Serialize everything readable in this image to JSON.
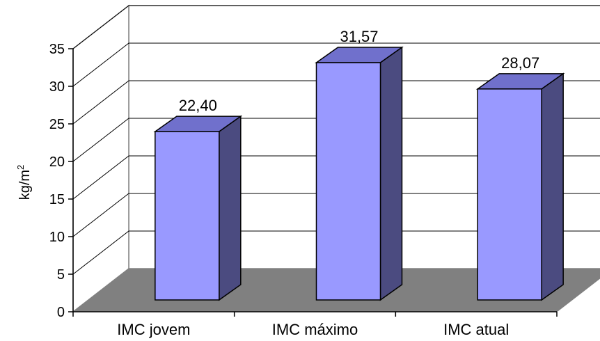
{
  "chart_data": {
    "type": "bar",
    "categories": [
      "IMC jovem",
      "IMC máximo",
      "IMC atual"
    ],
    "values": [
      22.4,
      31.57,
      28.07
    ],
    "data_labels": [
      "22,40",
      "31,57",
      "28,07"
    ],
    "ylabel": "kg/m",
    "ylabel_superscript": "2",
    "ylim": [
      0,
      35
    ],
    "yticks": [
      "0",
      "5",
      "10",
      "15",
      "20",
      "25",
      "30",
      "35"
    ],
    "grid": true,
    "three_d": true,
    "colors": {
      "bar_front": "#9999ff",
      "bar_top": "#7070cc",
      "bar_side": "#4b4b80",
      "floor": "#808080",
      "grid": "#000000",
      "wall": "#ffffff"
    }
  }
}
